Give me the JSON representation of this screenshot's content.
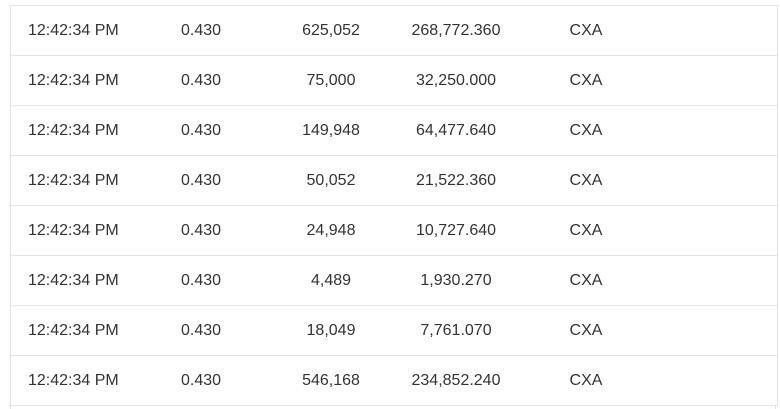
{
  "trades": {
    "rows": [
      {
        "time": "12:42:34 PM",
        "price": "0.430",
        "volume": "625,052",
        "value": "268,772.360",
        "market": "CXA"
      },
      {
        "time": "12:42:34 PM",
        "price": "0.430",
        "volume": "75,000",
        "value": "32,250.000",
        "market": "CXA"
      },
      {
        "time": "12:42:34 PM",
        "price": "0.430",
        "volume": "149,948",
        "value": "64,477.640",
        "market": "CXA"
      },
      {
        "time": "12:42:34 PM",
        "price": "0.430",
        "volume": "50,052",
        "value": "21,522.360",
        "market": "CXA"
      },
      {
        "time": "12:42:34 PM",
        "price": "0.430",
        "volume": "24,948",
        "value": "10,727.640",
        "market": "CXA"
      },
      {
        "time": "12:42:34 PM",
        "price": "0.430",
        "volume": "4,489",
        "value": "1,930.270",
        "market": "CXA"
      },
      {
        "time": "12:42:34 PM",
        "price": "0.430",
        "volume": "18,049",
        "value": "7,761.070",
        "market": "CXA"
      },
      {
        "time": "12:42:34 PM",
        "price": "0.430",
        "volume": "546,168",
        "value": "234,852.240",
        "market": "CXA"
      }
    ]
  }
}
